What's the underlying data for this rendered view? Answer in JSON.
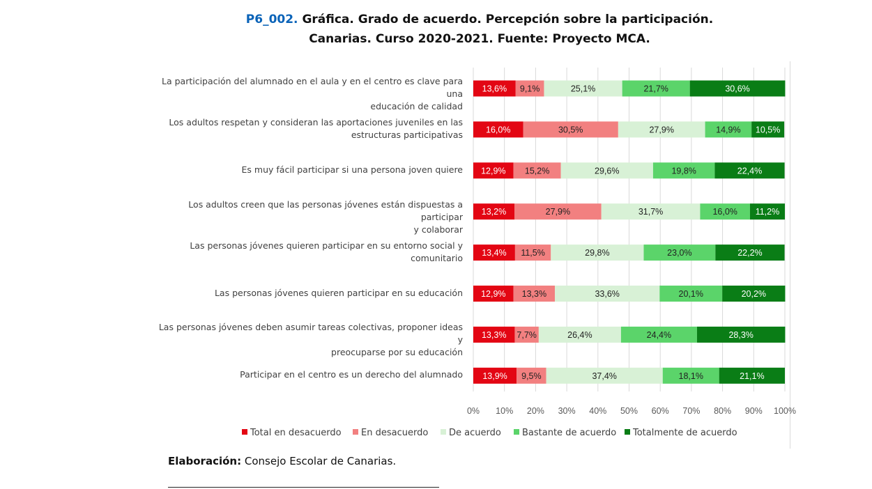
{
  "header": {
    "code": "P6_002.",
    "line1": "Gráfica. Grado de acuerdo. Percepción sobre la participación.",
    "line2": "Canarias. Curso 2020-2021. Fuente: Proyecto MCA."
  },
  "footer": {
    "label": "Elaboración:",
    "text": "Consejo Escolar de Canarias."
  },
  "colors": {
    "total_desacuerdo": "#e30613",
    "en_desacuerdo": "#f28080",
    "de_acuerdo": "#d8f1d6",
    "bastante_acuerdo": "#5bd46a",
    "totalmente_acuerdo": "#0a7d16",
    "grid": "#d9d9d9"
  },
  "chart_data": {
    "type": "bar",
    "orientation": "horizontal",
    "stacked": true,
    "percent": true,
    "xlim": [
      0,
      100
    ],
    "grid": true,
    "legend_position": "bottom",
    "x_ticks": [
      "0%",
      "10%",
      "20%",
      "30%",
      "40%",
      "50%",
      "60%",
      "70%",
      "80%",
      "90%",
      "100%"
    ],
    "categories": [
      [
        "La participación del alumnado en el aula y en el centro es clave para una",
        "educación de calidad"
      ],
      [
        "Los adultos respetan y consideran las aportaciones juveniles en las",
        "estructuras participativas"
      ],
      [
        "Es muy fácil participar si una persona joven quiere"
      ],
      [
        "Los adultos creen que las personas jóvenes están dispuestas a participar",
        "y colaborar"
      ],
      [
        "Las personas jóvenes quieren participar en su entorno social y",
        "comunitario"
      ],
      [
        "Las personas jóvenes quieren participar en su educación"
      ],
      [
        "Las personas jóvenes deben asumir tareas colectivas, proponer ideas y",
        "preocuparse por su educación"
      ],
      [
        "Participar en el centro es un derecho del alumnado"
      ]
    ],
    "series": [
      {
        "name": "Total en desacuerdo",
        "color": "#e30613",
        "label_color": "#ffffff",
        "values": [
          13.6,
          16.0,
          12.9,
          13.2,
          13.4,
          12.9,
          13.3,
          13.9
        ],
        "labels": [
          "13,6%",
          "16,0%",
          "12,9%",
          "13,2%",
          "13,4%",
          "12,9%",
          "13,3%",
          "13,9%"
        ]
      },
      {
        "name": "En desacuerdo",
        "color": "#f28080",
        "label_color": "#222222",
        "values": [
          9.1,
          30.5,
          15.2,
          27.9,
          11.5,
          13.3,
          7.7,
          9.5
        ],
        "labels": [
          "9,1%",
          "30,5%",
          "15,2%",
          "27,9%",
          "11,5%",
          "13,3%",
          "7,7%",
          "9,5%"
        ]
      },
      {
        "name": "De acuerdo",
        "color": "#d8f1d6",
        "label_color": "#222222",
        "values": [
          25.1,
          27.9,
          29.6,
          31.7,
          29.8,
          33.6,
          26.4,
          37.4
        ],
        "labels": [
          "25,1%",
          "27,9%",
          "29,6%",
          "31,7%",
          "29,8%",
          "33,6%",
          "26,4%",
          "37,4%"
        ]
      },
      {
        "name": "Bastante de acuerdo",
        "color": "#5bd46a",
        "label_color": "#222222",
        "values": [
          21.7,
          14.9,
          19.8,
          16.0,
          23.0,
          20.1,
          24.4,
          18.1
        ],
        "labels": [
          "21,7%",
          "14,9%",
          "19,8%",
          "16,0%",
          "23,0%",
          "20,1%",
          "24,4%",
          "18,1%"
        ]
      },
      {
        "name": "Totalmente de acuerdo",
        "color": "#0a7d16",
        "label_color": "#ffffff",
        "values": [
          30.6,
          10.5,
          22.4,
          11.2,
          22.2,
          20.2,
          28.3,
          21.1
        ],
        "labels": [
          "30,6%",
          "10,5%",
          "22,4%",
          "11,2%",
          "22,2%",
          "20,2%",
          "28,3%",
          "21,1%"
        ]
      }
    ]
  }
}
